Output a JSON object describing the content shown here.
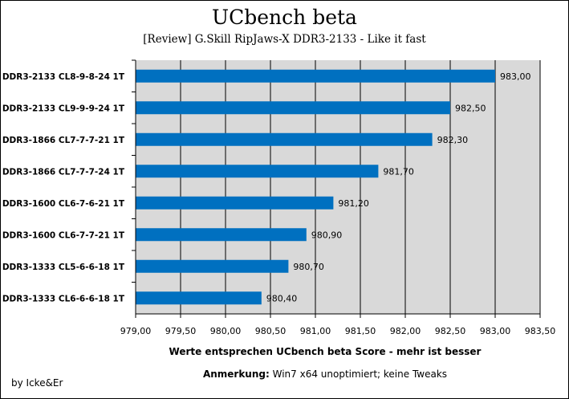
{
  "chart_data": {
    "type": "bar",
    "orientation": "horizontal",
    "title": "UCbench beta",
    "subtitle": "[Review] G.Skill RipJaws-X DDR3-2133 - Like it fast",
    "categories": [
      "DDR3-2133 CL8-9-8-24  1T",
      "DDR3-2133 CL9-9-9-24  1T",
      "DDR3-1866 CL7-7-7-21  1T",
      "DDR3-1866 CL7-7-7-24  1T",
      "DDR3-1600 CL6-7-6-21  1T",
      "DDR3-1600 CL6-7-7-21  1T",
      "DDR3-1333 CL5-6-6-18  1T",
      "DDR3-1333 CL6-6-6-18  1T"
    ],
    "values": [
      983.0,
      982.5,
      982.3,
      981.7,
      981.2,
      980.9,
      980.7,
      980.4
    ],
    "value_labels": [
      "983,00",
      "982,50",
      "982,30",
      "981,70",
      "981,20",
      "980,90",
      "980,70",
      "980,40"
    ],
    "xlim": [
      979.0,
      983.5
    ],
    "xticks": [
      979.0,
      979.5,
      980.0,
      980.5,
      981.0,
      981.5,
      982.0,
      982.5,
      983.0,
      983.5
    ],
    "xtick_labels": [
      "979,00",
      "979,50",
      "980,00",
      "980,50",
      "981,00",
      "981,50",
      "982,00",
      "982,50",
      "983,00",
      "983,50"
    ],
    "xlabel": "Werte entsprechen UCbench beta Score - mehr ist besser",
    "ylabel": "",
    "grid": true,
    "bar_color": "#0070C0",
    "plot_background": "#D9D9D9"
  },
  "note": {
    "label": "Anmerkung:",
    "text": " Win7 x64 unoptimiert; keine Tweaks"
  },
  "credit": "by Icke&Er"
}
